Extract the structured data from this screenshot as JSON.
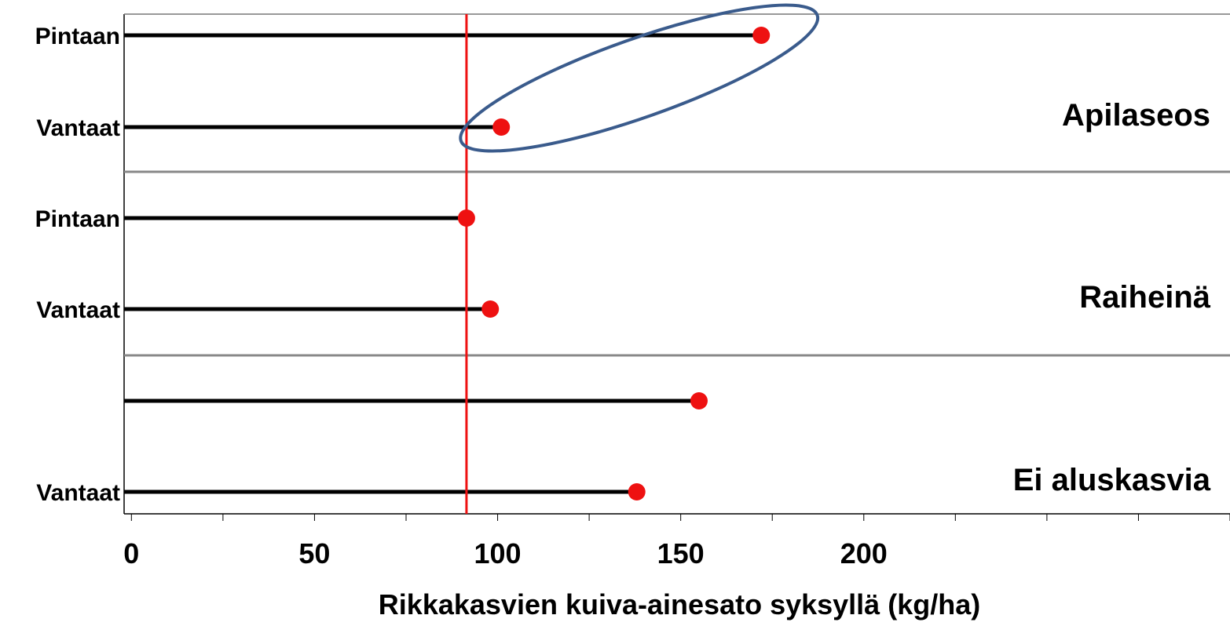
{
  "chart_data": {
    "type": "dot",
    "xlabel": "Rikkakasvien kuiva-ainesato syksyllä (kg/ha)",
    "xlim": [
      -2,
      300
    ],
    "xticks": [
      0,
      50,
      100,
      150,
      200
    ],
    "minor_tick_step": 25,
    "reference_line": {
      "value": 91.5,
      "color": "#ee1111"
    },
    "groups": [
      {
        "label": "Apilaseos",
        "rows": [
          {
            "label": "Pintaan",
            "value": 172
          },
          {
            "label": "Vantaat",
            "value": 101
          }
        ]
      },
      {
        "label": "Raiheinä",
        "rows": [
          {
            "label": "Pintaan",
            "value": 91.5
          },
          {
            "label": "Vantaat",
            "value": 98
          }
        ]
      },
      {
        "label": "Ei aluskasvia",
        "rows": [
          {
            "label": "",
            "value": 155
          },
          {
            "label": "Vantaat",
            "value": 138
          }
        ]
      }
    ],
    "highlight": {
      "group": "Apilaseos",
      "color": "#3a5b8c"
    },
    "colors": {
      "line": "#000000",
      "dot": "#ee1111",
      "separator": "#888888",
      "frame": "#000000"
    }
  }
}
